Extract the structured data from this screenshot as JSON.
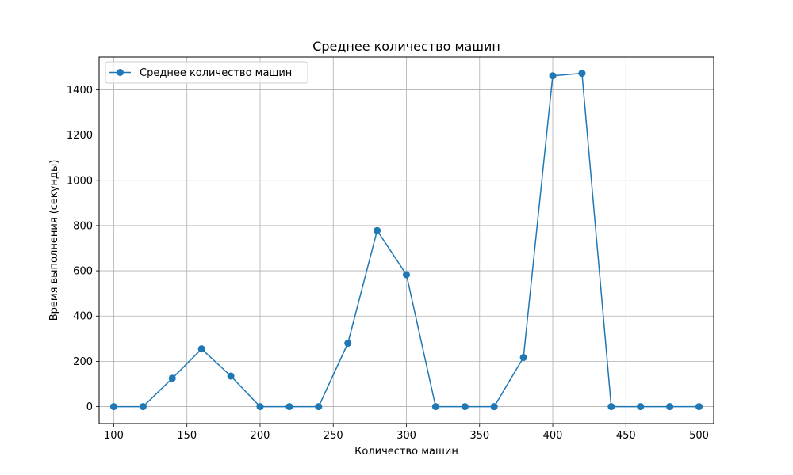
{
  "chart_data": {
    "type": "line",
    "title": "Среднее количество машин",
    "xlabel": "Количество машин",
    "ylabel": "Время выполнения (секунды)",
    "xlim": [
      90,
      510
    ],
    "ylim": [
      -75,
      1545
    ],
    "xticks": [
      100,
      150,
      200,
      250,
      300,
      350,
      400,
      450,
      500
    ],
    "yticks": [
      0,
      200,
      400,
      600,
      800,
      1000,
      1200,
      1400
    ],
    "grid": true,
    "legend": "top-left",
    "series": [
      {
        "name": "Среднее количество машин",
        "color": "#1f77b4",
        "marker": "circle",
        "x": [
          100,
          120,
          140,
          160,
          180,
          200,
          220,
          240,
          260,
          280,
          300,
          320,
          340,
          360,
          380,
          400,
          420,
          440,
          460,
          480,
          500
        ],
        "y": [
          0,
          0,
          125,
          255,
          135,
          0,
          0,
          0,
          280,
          778,
          583,
          0,
          0,
          0,
          217,
          1462,
          1473,
          0,
          0,
          0,
          0
        ]
      }
    ]
  }
}
